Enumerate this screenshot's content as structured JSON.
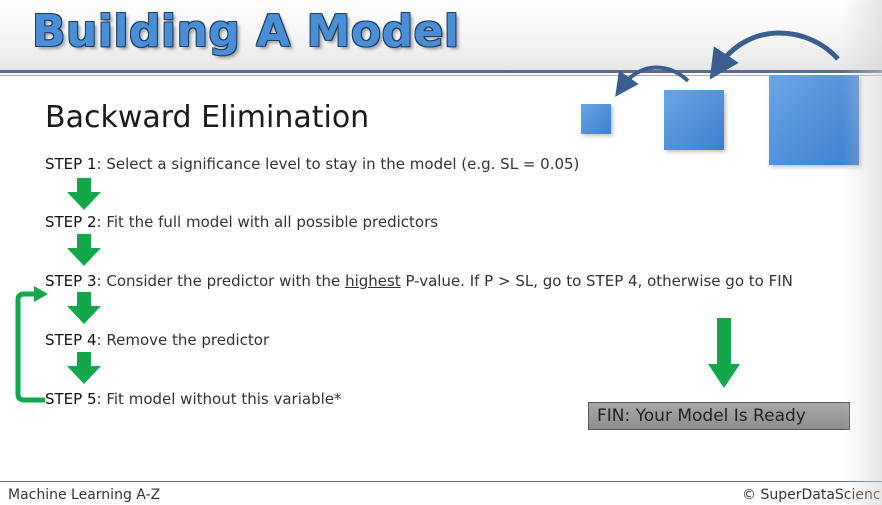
{
  "header": {
    "title": "Building A Model"
  },
  "slide": {
    "subtitle": "Backward Elimination",
    "steps": [
      {
        "label": "STEP 1",
        "text": ": Select a significance level to stay in the model (e.g. SL = 0.05)"
      },
      {
        "label": "STEP 2",
        "text": ": Fit the full model with all possible predictors"
      },
      {
        "label": "STEP 3",
        "text_before": ": Consider the predictor with the ",
        "emphasis": "highest",
        "text_after": " P-value. If P > SL, go to STEP 4, otherwise go to FIN"
      },
      {
        "label": "STEP 4",
        "text": ": Remove the predictor"
      },
      {
        "label": "STEP 5",
        "text": ": Fit model without this variable*"
      }
    ],
    "fin": {
      "label": "FIN",
      "text": ": Your Model Is Ready"
    },
    "colors": {
      "arrow_green": "#12a84a",
      "square_blue": "#4a8fd6",
      "curve_arrow": "#3a5f8f"
    }
  },
  "footer": {
    "left": "Machine Learning A-Z",
    "right": "© SuperDataScienc"
  },
  "icons": [
    "down-arrow-icon",
    "loop-arrow-icon",
    "curved-arrow-icon"
  ]
}
